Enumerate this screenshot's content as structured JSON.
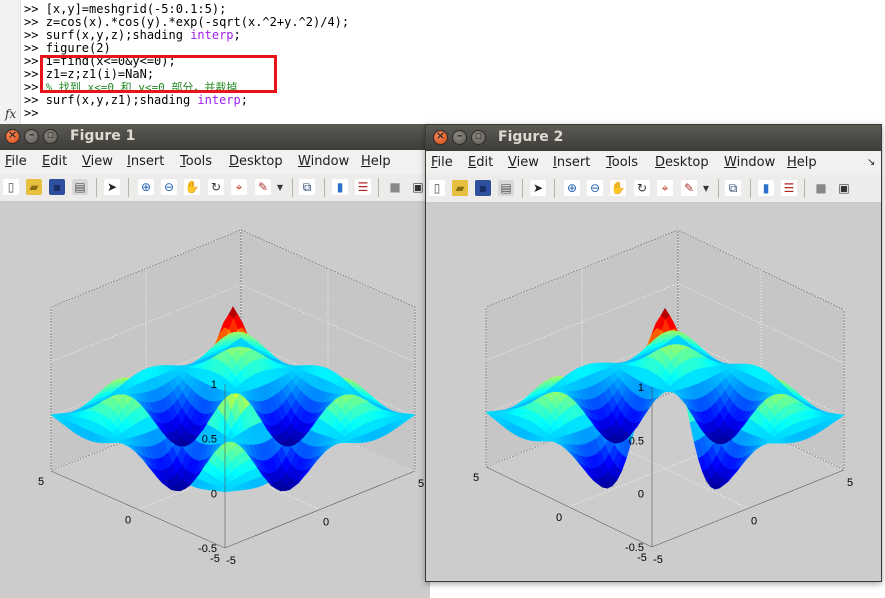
{
  "console": {
    "lines": [
      {
        "prompt": ">>",
        "code": "[x,y]=meshgrid(-5:0.1:5);"
      },
      {
        "prompt": ">>",
        "code": "z=cos(x).*cos(y).*exp(-sqrt(x.^2+y.^2)/4);"
      },
      {
        "prompt": ">>",
        "code": "surf(x,y,z);shading ",
        "keyword": "interp",
        "end": ";"
      },
      {
        "prompt": ">>",
        "code": "figure(2)"
      },
      {
        "prompt": ">>",
        "code": "i=find(x<=0&y<=0);"
      },
      {
        "prompt": ">>",
        "code": "z1=z;z1(i)=NaN;"
      },
      {
        "prompt": ">>",
        "comment": "% 找到 x<=0 和 y<=0 部分，并裁掉"
      },
      {
        "prompt": ">>",
        "code": "surf(x,y,z1);shading ",
        "keyword": "interp",
        "end": ";"
      },
      {
        "prompt": ">>",
        "code": ""
      }
    ],
    "fx_label": "fx"
  },
  "figure1": {
    "title": "Figure 1",
    "menus": [
      "File",
      "Edit",
      "View",
      "Insert",
      "Tools",
      "Desktop",
      "Window",
      "Help"
    ]
  },
  "figure2": {
    "title": "Figure 2",
    "menus": [
      "File",
      "Edit",
      "View",
      "Insert",
      "Tools",
      "Desktop",
      "Window",
      "Help"
    ]
  },
  "toolbar_icons": [
    "new-figure-icon",
    "open-file-icon",
    "save-icon",
    "print-icon",
    "pointer-icon",
    "zoom-in-icon",
    "zoom-out-icon",
    "pan-icon",
    "rotate-3d-icon",
    "data-cursor-icon",
    "brush-icon",
    "dropdown-arrow-icon",
    "link-plot-icon",
    "colorbar-icon",
    "legend-icon",
    "hide-plot-tools-icon",
    "show-plot-tools-icon"
  ],
  "plot_axes": {
    "z_ticks": [
      "1",
      "0.5",
      "0",
      "-0.5"
    ],
    "x_ticks": [
      "-5",
      "0",
      "5"
    ],
    "y_ticks": [
      "-5",
      "0",
      "5"
    ]
  },
  "colors": {
    "highlight_box": "#e8141b",
    "keyword": "#a020f0",
    "comment": "#228b22",
    "figure_bg": "#cccccc",
    "titlebar": "#4a4945"
  }
}
